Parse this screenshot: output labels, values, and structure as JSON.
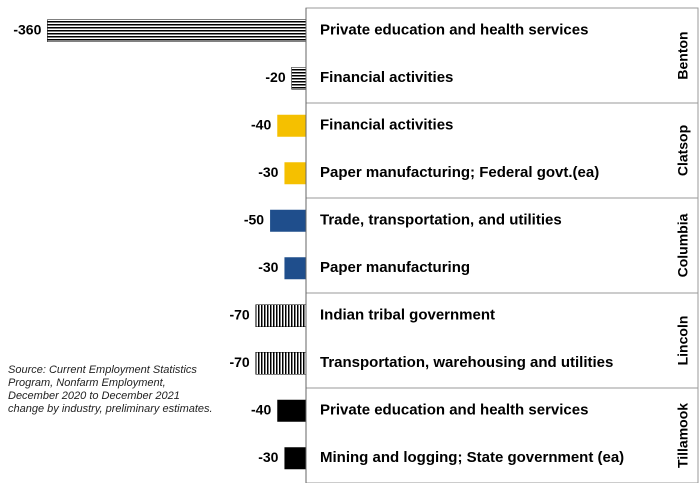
{
  "chart_data": {
    "type": "bar",
    "orientation": "horizontal",
    "groups": [
      {
        "name": "Benton",
        "categories": [
          "Private education and health services",
          "Financial activities"
        ],
        "values": [
          -360,
          -20
        ],
        "color": "#000000",
        "pattern": "horizontal-lines"
      },
      {
        "name": "Clatsop",
        "categories": [
          "Financial activities",
          "Paper manufacturing; Federal govt.(ea)"
        ],
        "values": [
          -40,
          -30
        ],
        "color": "#f5c000",
        "pattern": "solid"
      },
      {
        "name": "Columbia",
        "categories": [
          "Trade, transportation, and utilities",
          "Paper manufacturing"
        ],
        "values": [
          -50,
          -30
        ],
        "color": "#1f4e8c",
        "pattern": "solid"
      },
      {
        "name": "Lincoln",
        "categories": [
          "Indian tribal government",
          "Transportation, warehousing and utilities"
        ],
        "values": [
          -70,
          -70
        ],
        "color": "#000000",
        "pattern": "vertical-lines"
      },
      {
        "name": "Tillamook",
        "categories": [
          "Private education and health services",
          "Mining and logging; State government (ea)"
        ],
        "values": [
          -40,
          -30
        ],
        "color": "#000000",
        "pattern": "solid"
      }
    ],
    "xlim": [
      -380,
      0
    ],
    "source": "Source: Current Employment Statistics Program, Nonfarm Employment, December 2020 to December 2021 change by industry, preliminary estimates."
  }
}
